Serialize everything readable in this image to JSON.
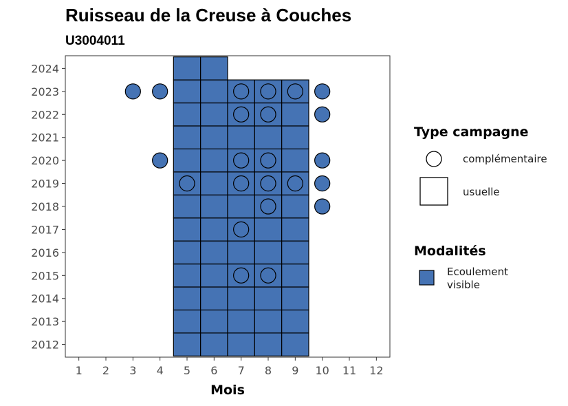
{
  "chart_data": {
    "type": "heatmap",
    "title": "Ruisseau de la Creuse à Couches",
    "subtitle": "U3004011",
    "xlabel": "Mois",
    "ylabel": "",
    "x_ticks": [
      "1",
      "2",
      "3",
      "4",
      "5",
      "6",
      "7",
      "8",
      "9",
      "10",
      "11",
      "12"
    ],
    "y_ticks": [
      "2012",
      "2013",
      "2014",
      "2015",
      "2016",
      "2017",
      "2018",
      "2019",
      "2020",
      "2021",
      "2022",
      "2023",
      "2024"
    ],
    "xlim": [
      0.5,
      12.5
    ],
    "ylim": [
      2011.45,
      2024.55
    ],
    "grid": false,
    "legend_position": "right",
    "fill_color": "#4573b4",
    "legend": {
      "type_title": "Type campagne",
      "type_entries": [
        {
          "label": "complémentaire",
          "shape": "circle"
        },
        {
          "label": "usuelle",
          "shape": "square"
        }
      ],
      "modalite_title": "Modalités",
      "modalite_entries": [
        {
          "label_lines": [
            "Ecoulement",
            "visible"
          ],
          "color": "#4573b4"
        }
      ]
    },
    "usuelle": [
      {
        "year": 2012,
        "months": [
          5,
          6,
          7,
          8,
          9
        ]
      },
      {
        "year": 2013,
        "months": [
          5,
          6,
          7,
          8,
          9
        ]
      },
      {
        "year": 2014,
        "months": [
          5,
          6,
          7,
          8,
          9
        ]
      },
      {
        "year": 2015,
        "months": [
          5,
          6,
          7,
          8,
          9
        ]
      },
      {
        "year": 2016,
        "months": [
          5,
          6,
          7,
          8,
          9
        ]
      },
      {
        "year": 2017,
        "months": [
          5,
          6,
          7,
          8,
          9
        ]
      },
      {
        "year": 2018,
        "months": [
          5,
          6,
          7,
          8,
          9
        ]
      },
      {
        "year": 2019,
        "months": [
          5,
          6,
          7,
          8,
          9
        ]
      },
      {
        "year": 2020,
        "months": [
          5,
          6,
          7,
          8,
          9
        ]
      },
      {
        "year": 2021,
        "months": [
          5,
          6,
          7,
          8,
          9
        ]
      },
      {
        "year": 2022,
        "months": [
          5,
          6,
          7,
          8,
          9
        ]
      },
      {
        "year": 2023,
        "months": [
          5,
          6,
          7,
          8,
          9
        ]
      },
      {
        "year": 2024,
        "months": [
          5,
          6
        ]
      }
    ],
    "complementaire": [
      {
        "year": 2015,
        "months": [
          7,
          8
        ]
      },
      {
        "year": 2017,
        "months": [
          7
        ]
      },
      {
        "year": 2018,
        "months": [
          8,
          10
        ]
      },
      {
        "year": 2019,
        "months": [
          5,
          7,
          8,
          9,
          10
        ]
      },
      {
        "year": 2020,
        "months": [
          4,
          7,
          8,
          10
        ]
      },
      {
        "year": 2022,
        "months": [
          7,
          8,
          10
        ]
      },
      {
        "year": 2023,
        "months": [
          3,
          4,
          7,
          8,
          9,
          10
        ]
      }
    ]
  }
}
